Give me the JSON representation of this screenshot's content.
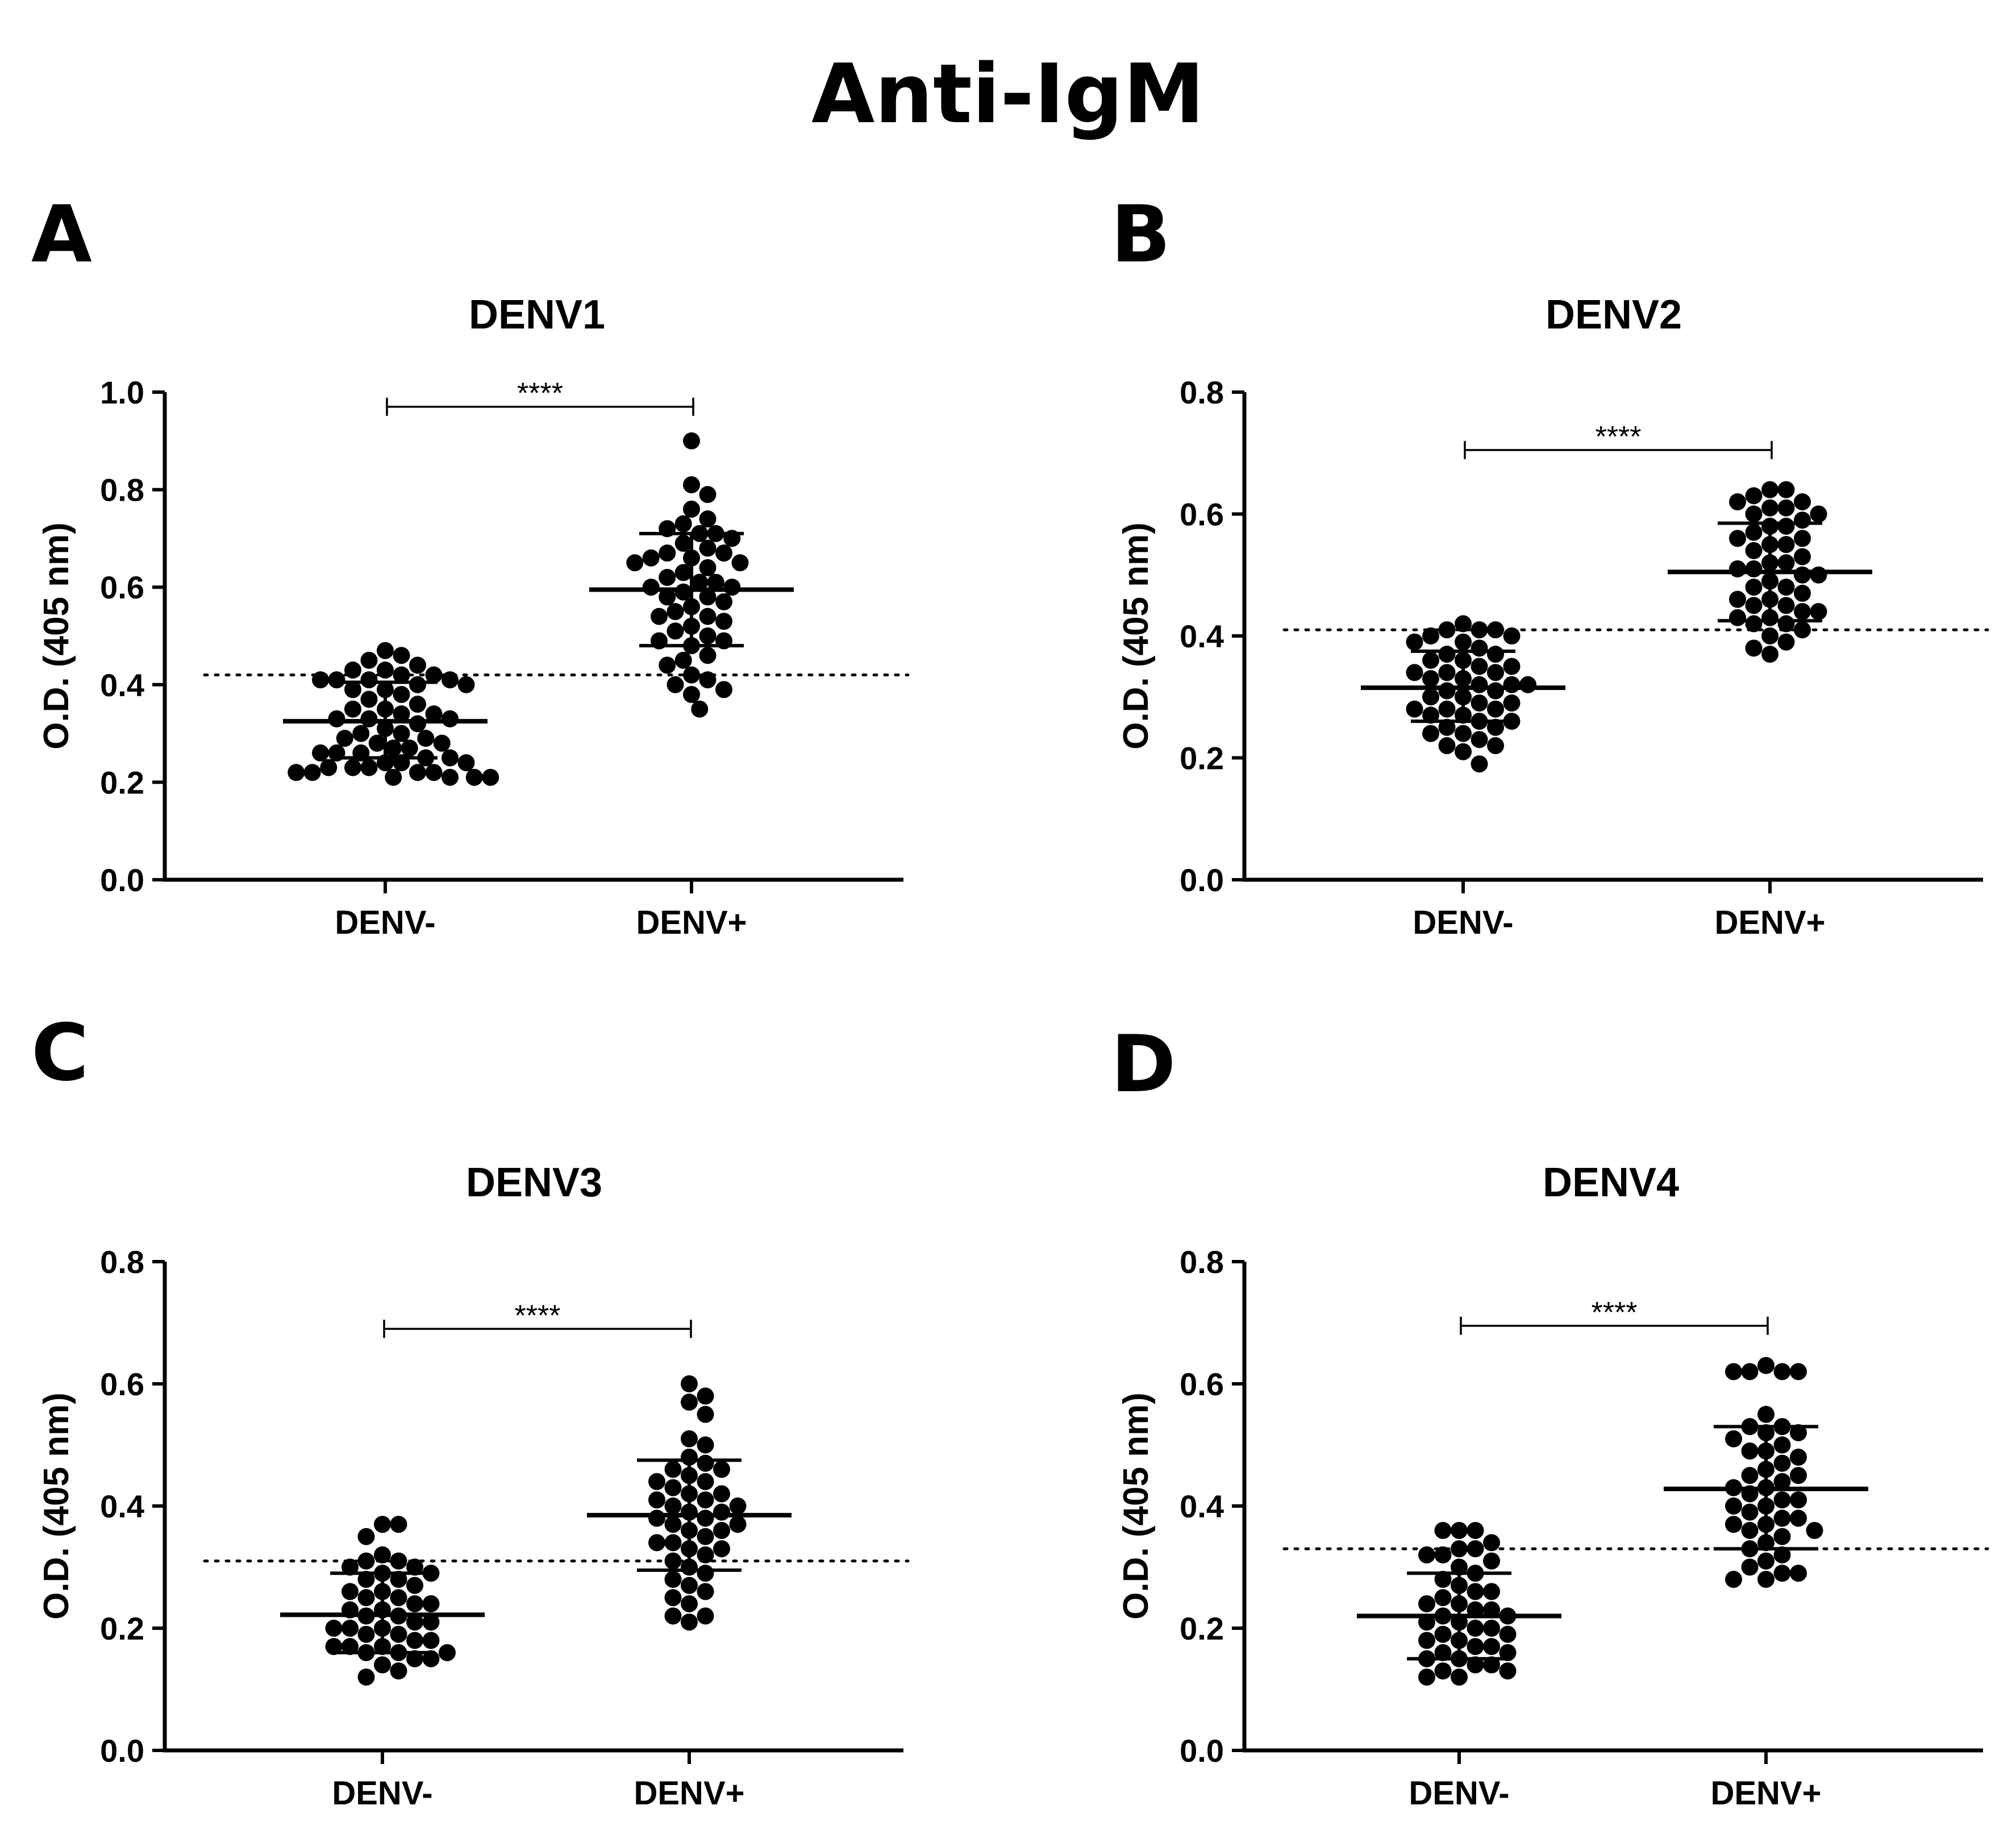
{
  "figure_title": "Anti-IgM",
  "chart_data": [
    {
      "panel": "A",
      "type": "scatter",
      "title": "DENV1",
      "ylabel": "O.D. (405 nm)",
      "xlabel": "",
      "categories": [
        "DENV-",
        "DENV+"
      ],
      "ylim": [
        0.0,
        1.0
      ],
      "yticks": [
        "0.0",
        "0.2",
        "0.4",
        "0.6",
        "0.8",
        "1.0"
      ],
      "yticks_values": [
        0,
        0.2,
        0.4,
        0.6,
        0.8,
        1.0
      ],
      "cutoff": 0.42,
      "significance": "****",
      "bracket_y": 0.97,
      "groups": [
        {
          "name": "DENV-",
          "mean": 0.325,
          "sd_low": 0.25,
          "sd_high": 0.405,
          "values": [
            0.47,
            0.45,
            0.46,
            0.44,
            0.43,
            0.43,
            0.42,
            0.42,
            0.41,
            0.41,
            0.41,
            0.41,
            0.4,
            0.4,
            0.39,
            0.39,
            0.38,
            0.37,
            0.36,
            0.35,
            0.35,
            0.34,
            0.34,
            0.33,
            0.33,
            0.33,
            0.32,
            0.31,
            0.3,
            0.3,
            0.29,
            0.29,
            0.28,
            0.28,
            0.27,
            0.27,
            0.26,
            0.26,
            0.26,
            0.25,
            0.25,
            0.24,
            0.24,
            0.24,
            0.23,
            0.23,
            0.23,
            0.22,
            0.22,
            0.22,
            0.22,
            0.21,
            0.21,
            0.21,
            0.21
          ]
        },
        {
          "name": "DENV+",
          "mean": 0.595,
          "sd_low": 0.48,
          "sd_high": 0.71,
          "values": [
            0.9,
            0.81,
            0.79,
            0.76,
            0.74,
            0.73,
            0.72,
            0.71,
            0.71,
            0.7,
            0.69,
            0.68,
            0.67,
            0.67,
            0.66,
            0.66,
            0.65,
            0.65,
            0.64,
            0.63,
            0.62,
            0.61,
            0.61,
            0.6,
            0.6,
            0.59,
            0.58,
            0.58,
            0.57,
            0.56,
            0.55,
            0.54,
            0.54,
            0.53,
            0.52,
            0.51,
            0.5,
            0.49,
            0.49,
            0.48,
            0.46,
            0.45,
            0.44,
            0.42,
            0.41,
            0.4,
            0.39,
            0.38,
            0.35
          ]
        }
      ]
    },
    {
      "panel": "B",
      "type": "scatter",
      "title": "DENV2",
      "ylabel": "O.D. (405 nm)",
      "xlabel": "",
      "categories": [
        "DENV-",
        "DENV+"
      ],
      "ylim": [
        0.0,
        0.8
      ],
      "yticks": [
        "0.0",
        "0.2",
        "0.4",
        "0.6",
        "0.8"
      ],
      "yticks_values": [
        0,
        0.2,
        0.4,
        0.6,
        0.8
      ],
      "cutoff": 0.41,
      "significance": "****",
      "bracket_y": 0.705,
      "groups": [
        {
          "name": "DENV-",
          "mean": 0.315,
          "sd_low": 0.26,
          "sd_high": 0.375,
          "values": [
            0.42,
            0.41,
            0.41,
            0.41,
            0.4,
            0.4,
            0.39,
            0.39,
            0.38,
            0.37,
            0.37,
            0.36,
            0.36,
            0.35,
            0.35,
            0.34,
            0.34,
            0.34,
            0.33,
            0.33,
            0.32,
            0.32,
            0.32,
            0.31,
            0.31,
            0.3,
            0.3,
            0.29,
            0.29,
            0.28,
            0.28,
            0.28,
            0.27,
            0.27,
            0.26,
            0.26,
            0.25,
            0.25,
            0.24,
            0.24,
            0.23,
            0.22,
            0.22,
            0.21,
            0.19
          ]
        },
        {
          "name": "DENV+",
          "mean": 0.505,
          "sd_low": 0.425,
          "sd_high": 0.585,
          "values": [
            0.64,
            0.64,
            0.63,
            0.62,
            0.62,
            0.61,
            0.61,
            0.6,
            0.6,
            0.59,
            0.58,
            0.58,
            0.57,
            0.56,
            0.56,
            0.55,
            0.55,
            0.54,
            0.53,
            0.52,
            0.52,
            0.51,
            0.51,
            0.5,
            0.5,
            0.49,
            0.48,
            0.48,
            0.47,
            0.46,
            0.46,
            0.45,
            0.45,
            0.44,
            0.44,
            0.43,
            0.43,
            0.42,
            0.42,
            0.41,
            0.4,
            0.39,
            0.38,
            0.37
          ]
        }
      ]
    },
    {
      "panel": "C",
      "type": "scatter",
      "title": "DENV3",
      "ylabel": "O.D. (405 nm)",
      "xlabel": "",
      "categories": [
        "DENV-",
        "DENV+"
      ],
      "ylim": [
        0.0,
        0.8
      ],
      "yticks": [
        "0.0",
        "0.2",
        "0.4",
        "0.6",
        "0.8"
      ],
      "yticks_values": [
        0,
        0.2,
        0.4,
        0.6,
        0.8
      ],
      "cutoff": 0.31,
      "significance": "****",
      "bracket_y": 0.69,
      "groups": [
        {
          "name": "DENV-",
          "mean": 0.222,
          "sd_low": 0.16,
          "sd_high": 0.29,
          "values": [
            0.37,
            0.37,
            0.35,
            0.32,
            0.31,
            0.31,
            0.3,
            0.3,
            0.29,
            0.29,
            0.28,
            0.28,
            0.27,
            0.26,
            0.26,
            0.25,
            0.25,
            0.24,
            0.24,
            0.23,
            0.23,
            0.22,
            0.22,
            0.21,
            0.21,
            0.2,
            0.2,
            0.2,
            0.19,
            0.19,
            0.18,
            0.18,
            0.17,
            0.17,
            0.17,
            0.16,
            0.16,
            0.16,
            0.15,
            0.15,
            0.14,
            0.13,
            0.12
          ]
        },
        {
          "name": "DENV+",
          "mean": 0.385,
          "sd_low": 0.295,
          "sd_high": 0.475,
          "values": [
            0.6,
            0.58,
            0.57,
            0.55,
            0.51,
            0.5,
            0.48,
            0.47,
            0.46,
            0.46,
            0.45,
            0.44,
            0.44,
            0.43,
            0.42,
            0.42,
            0.41,
            0.41,
            0.4,
            0.4,
            0.39,
            0.39,
            0.38,
            0.38,
            0.37,
            0.37,
            0.36,
            0.36,
            0.35,
            0.34,
            0.34,
            0.33,
            0.33,
            0.32,
            0.31,
            0.3,
            0.29,
            0.28,
            0.27,
            0.26,
            0.25,
            0.24,
            0.22,
            0.22,
            0.21
          ]
        }
      ]
    },
    {
      "panel": "D",
      "type": "scatter",
      "title": "DENV4",
      "ylabel": "O.D. (405 nm)",
      "xlabel": "",
      "categories": [
        "DENV-",
        "DENV+"
      ],
      "ylim": [
        0.0,
        0.8
      ],
      "yticks": [
        "0.0",
        "0.2",
        "0.4",
        "0.6",
        "0.8"
      ],
      "yticks_values": [
        0,
        0.2,
        0.4,
        0.6,
        0.8
      ],
      "cutoff": 0.33,
      "significance": "****",
      "bracket_y": 0.695,
      "groups": [
        {
          "name": "DENV-",
          "mean": 0.22,
          "sd_low": 0.15,
          "sd_high": 0.29,
          "values": [
            0.36,
            0.36,
            0.36,
            0.34,
            0.33,
            0.33,
            0.32,
            0.32,
            0.31,
            0.3,
            0.29,
            0.28,
            0.27,
            0.26,
            0.26,
            0.25,
            0.24,
            0.24,
            0.23,
            0.23,
            0.22,
            0.22,
            0.21,
            0.21,
            0.2,
            0.2,
            0.19,
            0.19,
            0.18,
            0.18,
            0.17,
            0.17,
            0.16,
            0.16,
            0.15,
            0.15,
            0.14,
            0.14,
            0.13,
            0.13,
            0.12,
            0.12
          ]
        },
        {
          "name": "DENV+",
          "mean": 0.428,
          "sd_low": 0.33,
          "sd_high": 0.53,
          "values": [
            0.63,
            0.62,
            0.62,
            0.62,
            0.62,
            0.55,
            0.53,
            0.53,
            0.52,
            0.52,
            0.51,
            0.5,
            0.49,
            0.49,
            0.48,
            0.47,
            0.46,
            0.45,
            0.45,
            0.44,
            0.43,
            0.43,
            0.42,
            0.41,
            0.41,
            0.4,
            0.4,
            0.39,
            0.38,
            0.38,
            0.37,
            0.37,
            0.36,
            0.36,
            0.35,
            0.34,
            0.33,
            0.32,
            0.31,
            0.3,
            0.29,
            0.29,
            0.28,
            0.28
          ]
        }
      ]
    }
  ]
}
